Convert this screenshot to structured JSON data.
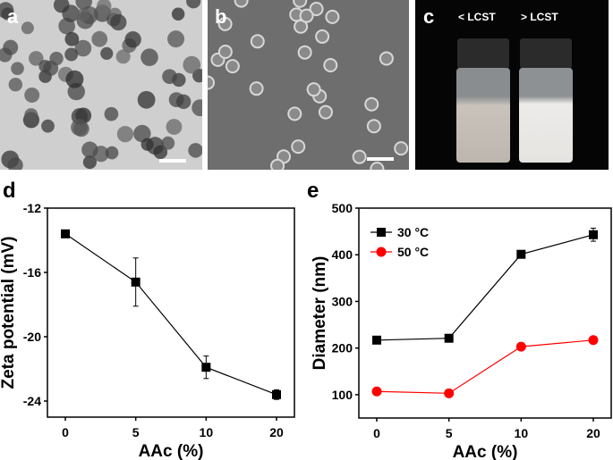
{
  "panels": {
    "a": {
      "label": "a"
    },
    "b": {
      "label": "b"
    },
    "c": {
      "label": "c",
      "vial_left": "< LCST",
      "vial_right": "> LCST"
    },
    "d": {
      "label": "d"
    },
    "e": {
      "label": "e"
    }
  },
  "chart_data": [
    {
      "type": "line",
      "panel": "d",
      "xlabel": "AAc (%)",
      "ylabel": "Zeta potential (mV)",
      "categories": [
        "0",
        "5",
        "10",
        "20"
      ],
      "ylim": [
        -25,
        -12
      ],
      "yticks": [
        "-12",
        "-16",
        "-20",
        "-24"
      ],
      "ytick_values": [
        -12,
        -16,
        -20,
        -24
      ],
      "grid": false,
      "series": [
        {
          "values": [
            -13.6,
            -16.6,
            -21.9,
            -23.6
          ],
          "errors": [
            0.15,
            1.5,
            0.7,
            0.3
          ],
          "color": "#000000",
          "marker": "square"
        }
      ]
    },
    {
      "type": "line",
      "panel": "e",
      "xlabel": "AAc (%)",
      "ylabel": "Diameter (nm)",
      "categories": [
        "0",
        "5",
        "10",
        "20"
      ],
      "ylim": [
        50,
        500
      ],
      "yticks": [
        "100",
        "200",
        "300",
        "400",
        "500"
      ],
      "ytick_values": [
        100,
        200,
        300,
        400,
        500
      ],
      "grid": false,
      "legend": "top-left",
      "series": [
        {
          "name": "30 °C",
          "values": [
            217,
            221,
            401,
            443
          ],
          "errors": [
            4,
            4,
            7,
            14
          ],
          "color": "#000000",
          "marker": "square"
        },
        {
          "name": "50 °C",
          "values": [
            107,
            103,
            203,
            217
          ],
          "errors": [
            5,
            5,
            5,
            5
          ],
          "color": "#ff0000",
          "marker": "circle"
        }
      ]
    }
  ]
}
